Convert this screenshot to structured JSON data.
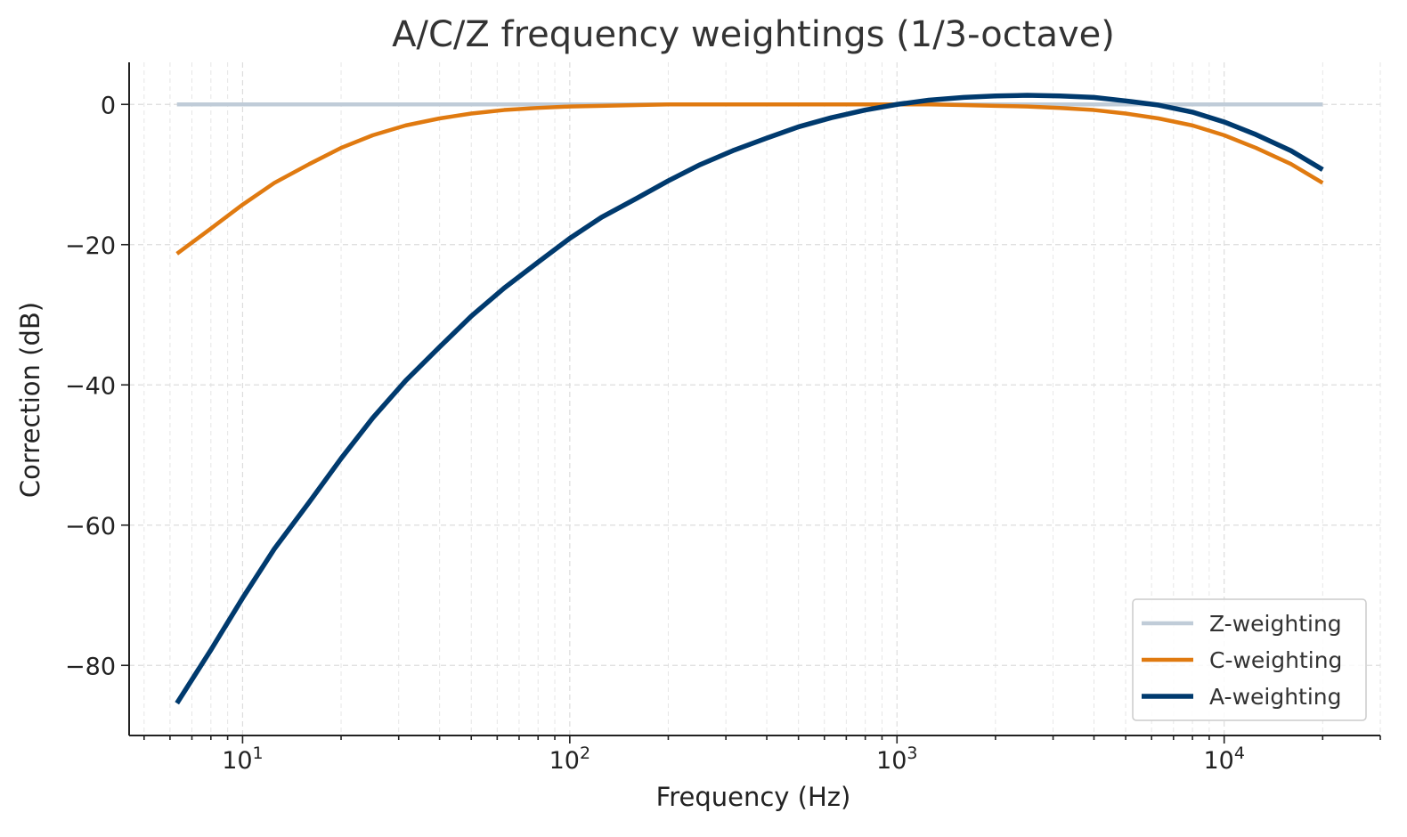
{
  "chart_data": {
    "type": "line",
    "title": "A/C/Z frequency weightings (1/3-octave)",
    "xlabel": "Frequency (Hz)",
    "ylabel": "Correction (dB)",
    "xscale": "log",
    "xlim": [
      4.5,
      30000
    ],
    "ylim": [
      -90,
      6
    ],
    "grid": true,
    "legend_position": "bottom-right",
    "x": [
      6.3,
      8,
      10,
      12.5,
      16,
      20,
      25,
      31.5,
      40,
      50,
      63,
      80,
      100,
      125,
      160,
      200,
      250,
      315,
      400,
      500,
      630,
      800,
      1000,
      1250,
      1600,
      2000,
      2500,
      3150,
      4000,
      5000,
      6300,
      8000,
      10000,
      12500,
      16000,
      20000
    ],
    "x_ticks": [
      {
        "value": 10,
        "label": "10",
        "exp": "1"
      },
      {
        "value": 100,
        "label": "10",
        "exp": "2"
      },
      {
        "value": 1000,
        "label": "10",
        "exp": "3"
      },
      {
        "value": 10000,
        "label": "10",
        "exp": "4"
      }
    ],
    "y_ticks": [
      {
        "value": 0,
        "label": "0"
      },
      {
        "value": -20,
        "label": "−20"
      },
      {
        "value": -40,
        "label": "−40"
      },
      {
        "value": -60,
        "label": "−60"
      },
      {
        "value": -80,
        "label": "−80"
      }
    ],
    "series": [
      {
        "name": "Z-weighting",
        "color": "#c0ccd8",
        "width": 4.5,
        "values": [
          0,
          0,
          0,
          0,
          0,
          0,
          0,
          0,
          0,
          0,
          0,
          0,
          0,
          0,
          0,
          0,
          0,
          0,
          0,
          0,
          0,
          0,
          0,
          0,
          0,
          0,
          0,
          0,
          0,
          0,
          0,
          0,
          0,
          0,
          0,
          0
        ]
      },
      {
        "name": "C-weighting",
        "color": "#e07a10",
        "width": 4.5,
        "values": [
          -21.3,
          -17.7,
          -14.3,
          -11.2,
          -8.5,
          -6.2,
          -4.4,
          -3.0,
          -2.0,
          -1.3,
          -0.8,
          -0.5,
          -0.3,
          -0.2,
          -0.1,
          0,
          0,
          0,
          0,
          0,
          0,
          0,
          0,
          0,
          -0.1,
          -0.2,
          -0.3,
          -0.5,
          -0.8,
          -1.3,
          -2.0,
          -3.0,
          -4.4,
          -6.2,
          -8.5,
          -11.2
        ]
      },
      {
        "name": "A-weighting",
        "color": "#003a6e",
        "width": 5.5,
        "values": [
          -85.4,
          -77.8,
          -70.4,
          -63.4,
          -56.7,
          -50.5,
          -44.7,
          -39.4,
          -34.6,
          -30.2,
          -26.2,
          -22.5,
          -19.1,
          -16.1,
          -13.4,
          -10.9,
          -8.6,
          -6.6,
          -4.8,
          -3.2,
          -1.9,
          -0.8,
          0,
          0.6,
          1.0,
          1.2,
          1.3,
          1.2,
          1.0,
          0.5,
          -0.1,
          -1.1,
          -2.5,
          -4.3,
          -6.6,
          -9.3
        ]
      }
    ],
    "legend_order": [
      "Z-weighting",
      "C-weighting",
      "A-weighting"
    ]
  }
}
